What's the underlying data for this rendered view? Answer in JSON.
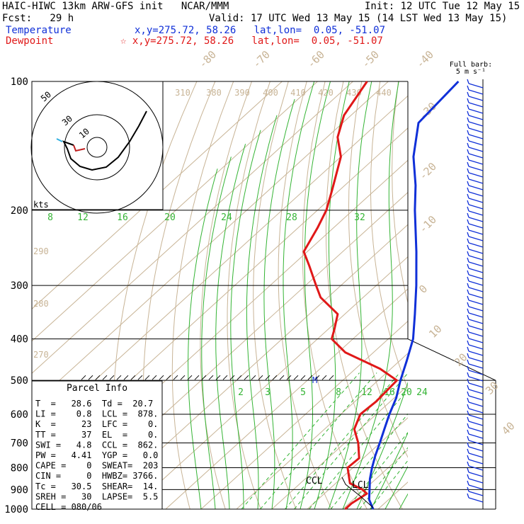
{
  "header": {
    "title": "HAIC-HIWC 13km ARW-GFS init   NCAR/MMM",
    "init": "Init: 12 UTC Tue 12 May 15",
    "fcst": "Fcst:   29 h",
    "valid": "Valid: 17 UTC Wed 13 May 15 (14 LST Wed 13 May 15)",
    "temperature_label": "Temperature",
    "temperature_loc": "x,y=275.72, 58.26   lat,lon=  0.05, -51.07",
    "dewpoint_label": "Dewpoint",
    "dewpoint_loc": "☆ x,y=275.72, 58.26   lat,lon=  0.05, -51.07"
  },
  "colors": {
    "temperature": "#1030d8",
    "dewpoint": "#e01818",
    "isotherm": "#c8b496",
    "mixing_ratio": "#34b434",
    "isobar": "#000000"
  },
  "barb_legend": [
    "Full barb:",
    "5 m s⁻¹"
  ],
  "hodograph": {
    "unit": "kts",
    "ring_labels": [
      "10",
      "30",
      "50"
    ]
  },
  "parcel_info": {
    "title": "Parcel Info",
    "rows": [
      "T  =   28.6  Td =  20.7",
      "LI =    0.8  LCL =  878.",
      "K  =     23  LFC =    0.",
      "TT =     37  EL  =    0.",
      "SWI =   4.8  CCL =  862.",
      "PW =   4.41  YGP =   0.0",
      "CAPE =    0  SWEAT=  203",
      "CIN =     0  HWBZ= 3766.",
      "Tc =   30.5  SHEAR=  14.",
      "SREH =   30  LAPSE=  5.5",
      "CELL = 080/06"
    ]
  },
  "chart_data": {
    "type": "line",
    "chart_kind": "Skew-T log-P",
    "y_axis": {
      "scale": "log",
      "range": [
        1000,
        100
      ],
      "ticks": [
        100,
        200,
        300,
        400,
        500,
        600,
        700,
        800,
        900,
        1000
      ]
    },
    "isotherm_labels": [
      "-80",
      "-70",
      "-60",
      "-50",
      "-40",
      "-30",
      "-20",
      "-10",
      "0",
      "10",
      "20",
      "30",
      "40"
    ],
    "theta_labels": [
      "310",
      "380",
      "390",
      "400",
      "410",
      "420",
      "430",
      "440"
    ],
    "theta_left_labels": [
      "290",
      "280",
      "270"
    ],
    "mixing_ratio_labels_upper": [
      "8",
      "12",
      "16",
      "20",
      "24",
      "28",
      "32"
    ],
    "mixing_ratio_labels_lower": [
      "2",
      "3",
      "5",
      "6",
      "8",
      "12",
      "16",
      "20",
      "24"
    ],
    "annotations": [
      "CCL",
      "LCL",
      "M"
    ],
    "series": [
      {
        "name": "Temperature",
        "points": [
          [
            1000,
            28.6
          ],
          [
            950,
            24.5
          ],
          [
            900,
            21.5
          ],
          [
            850,
            18.3
          ],
          [
            800,
            15.4
          ],
          [
            750,
            12.6
          ],
          [
            700,
            9.9
          ],
          [
            650,
            6.9
          ],
          [
            600,
            3.7
          ],
          [
            550,
            0.6
          ],
          [
            500,
            -3.7
          ],
          [
            450,
            -8.0
          ],
          [
            400,
            -13.0
          ],
          [
            350,
            -20.2
          ],
          [
            300,
            -28.7
          ],
          [
            250,
            -39.2
          ],
          [
            200,
            -52.5
          ],
          [
            175,
            -60.0
          ],
          [
            150,
            -69.5
          ],
          [
            125,
            -78.6
          ],
          [
            100,
            -80.2
          ]
        ]
      },
      {
        "name": "Dewpoint",
        "points": [
          [
            1000,
            20.7
          ],
          [
            970,
            20.7
          ],
          [
            920,
            22.0
          ],
          [
            900,
            19.5
          ],
          [
            870,
            14.0
          ],
          [
            800,
            8.5
          ],
          [
            760,
            8.8
          ],
          [
            700,
            3.8
          ],
          [
            650,
            -1.6
          ],
          [
            600,
            -4.5
          ],
          [
            560,
            -4.0
          ],
          [
            500,
            -4.7
          ],
          [
            470,
            -13.0
          ],
          [
            430,
            -28.0
          ],
          [
            400,
            -36.0
          ],
          [
            380,
            -38.2
          ],
          [
            350,
            -42.0
          ],
          [
            320,
            -52.0
          ],
          [
            300,
            -57.0
          ],
          [
            270,
            -65.0
          ],
          [
            250,
            -71.0
          ],
          [
            220,
            -74.5
          ],
          [
            200,
            -77.5
          ],
          [
            180,
            -82.0
          ],
          [
            150,
            -90.0
          ],
          [
            135,
            -97.0
          ],
          [
            120,
            -102.0
          ],
          [
            100,
            -106.0
          ]
        ]
      }
    ]
  }
}
